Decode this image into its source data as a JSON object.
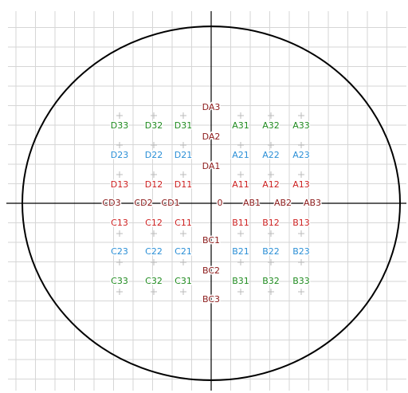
{
  "grid_labels": {
    "rows": [
      [
        "D33",
        "D32",
        "D31",
        "A31",
        "A32",
        "A33"
      ],
      [
        "D23",
        "D22",
        "D21",
        "A21",
        "A22",
        "A23"
      ],
      [
        "D13",
        "D12",
        "D11",
        "A11",
        "A12",
        "A13"
      ],
      [
        "C13",
        "C12",
        "C11",
        "B11",
        "B12",
        "B13"
      ],
      [
        "C23",
        "C22",
        "C21",
        "B21",
        "B22",
        "B23"
      ],
      [
        "C33",
        "C32",
        "C31",
        "B31",
        "B32",
        "B33"
      ]
    ]
  },
  "axis_labels": {
    "vertical": [
      "DA3",
      "DA2",
      "DA1",
      "BC1",
      "BC2",
      "BC3"
    ],
    "horizontal": [
      "CD3",
      "CD2",
      "CD1",
      "0",
      "AB1",
      "AB2",
      "AB3"
    ]
  }
}
